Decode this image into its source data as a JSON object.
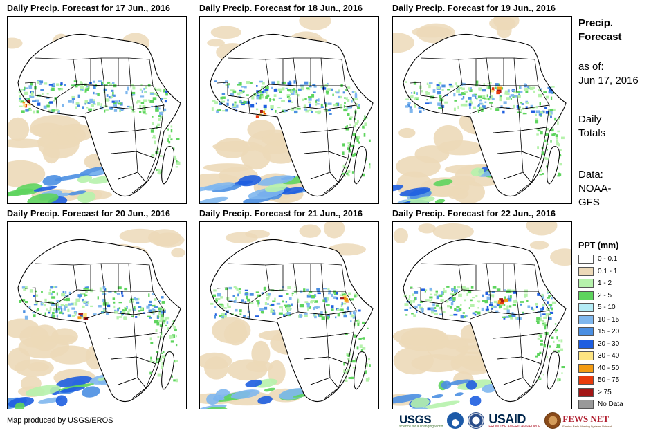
{
  "panels": [
    {
      "title": "Daily Precip. Forecast for 17 Jun., 2016",
      "date": "17 Jun., 2016"
    },
    {
      "title": "Daily Precip. Forecast for 18 Jun., 2016",
      "date": "18 Jun., 2016"
    },
    {
      "title": "Daily Precip. Forecast for 19 Jun., 2016",
      "date": "19 Jun., 2016"
    },
    {
      "title": "Daily Precip. Forecast for 20 Jun., 2016",
      "date": "20 Jun., 2016"
    },
    {
      "title": "Daily Precip. Forecast for 21 Jun., 2016",
      "date": "21 Jun., 2016"
    },
    {
      "title": "Daily Precip. Forecast for 22 Jun., 2016",
      "date": "22 Jun., 2016"
    }
  ],
  "sidebar": {
    "title_line1": "Precip.",
    "title_line2": "Forecast",
    "asof_line1": "as of:",
    "asof_line2": "Jun 17, 2016",
    "totals_line1": "Daily",
    "totals_line2": "Totals",
    "data_line1": "Data:",
    "data_line2": "NOAA-",
    "data_line3": "GFS"
  },
  "legend": {
    "title": "PPT (mm)",
    "items": [
      {
        "label": "0 - 0.1",
        "color": "#ffffff"
      },
      {
        "label": "0.1 - 1",
        "color": "#ecd9b8"
      },
      {
        "label": "1 - 2",
        "color": "#b6f2ac"
      },
      {
        "label": "2 - 5",
        "color": "#5ed45e"
      },
      {
        "label": "5 - 10",
        "color": "#b4ecf6"
      },
      {
        "label": "10 - 15",
        "color": "#7fb7ee"
      },
      {
        "label": "15 - 20",
        "color": "#4b8fe2"
      },
      {
        "label": "20 - 30",
        "color": "#1e5ee0"
      },
      {
        "label": "30 - 40",
        "color": "#fde481"
      },
      {
        "label": "40 - 50",
        "color": "#f39b12"
      },
      {
        "label": "50 - 75",
        "color": "#e83b0c"
      },
      {
        "label": "> 75",
        "color": "#a31616"
      },
      {
        "label": "No Data",
        "color": "#999999"
      }
    ]
  },
  "footer": {
    "credit": "Map produced by USGS/EROS",
    "logos": {
      "usgs": "USGS",
      "usgs_tagline": "science for a changing world",
      "usaid": "USAID",
      "usaid_tagline": "FROM THE AMERICAN PEOPLE",
      "fews": "FEWS NET",
      "fews_tagline": "Famine Early Warning Systems Network"
    }
  }
}
